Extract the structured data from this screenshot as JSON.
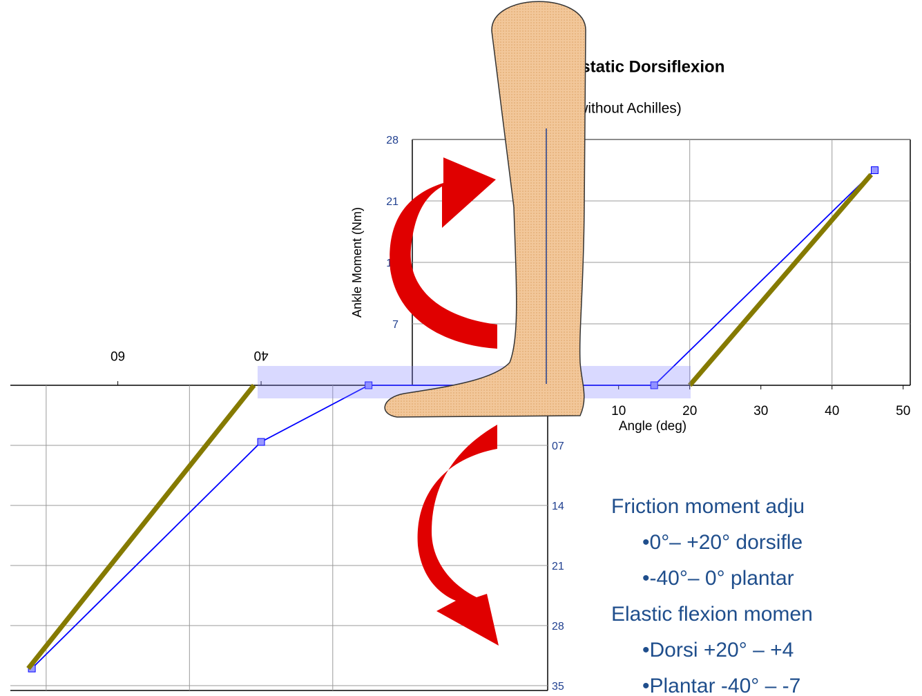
{
  "chart_data": [
    {
      "type": "line",
      "title": "Quasi-static Dorsiflexion",
      "subtitle": "(without Achilles)",
      "y_label": "Ankle Moment (Nm)",
      "x_label": "Angle (deg)",
      "xlim": [
        -19,
        51
      ],
      "ylim": [
        0,
        28
      ],
      "xticks": [
        10,
        20,
        30,
        40,
        50
      ],
      "yticks": [
        7,
        14,
        21,
        28
      ],
      "x_gridlines": [
        20,
        40
      ],
      "grid": true,
      "series": [
        {
          "color": "#0000ff",
          "x": [
            0,
            15,
            46
          ],
          "values": [
            0,
            0,
            24.5
          ],
          "markers": true
        },
        {
          "color": "#857a00",
          "x": [
            20,
            45.5
          ],
          "values": [
            0,
            24
          ],
          "markers": false
        }
      ]
    },
    {
      "type": "line",
      "x_reversed": true,
      "y_reversed": true,
      "upside_down_labels": true,
      "xlim": [
        0,
        75
      ],
      "ylim": [
        0,
        35
      ],
      "xticks": [
        0,
        40,
        60
      ],
      "yticks": [
        {
          "value": 7,
          "label": "07"
        },
        14,
        21,
        28,
        35
      ],
      "x_gridlines": [
        30,
        50,
        70
      ],
      "grid": true,
      "series": [
        {
          "color": "#0000ff",
          "x": [
            0,
            25,
            40,
            72
          ],
          "values": [
            0,
            0,
            6.6,
            33
          ],
          "markers": true
        },
        {
          "color": "#857a00",
          "x": [
            41,
            72.5
          ],
          "values": [
            0,
            33
          ],
          "markers": false
        }
      ]
    }
  ],
  "notes": [
    "Friction moment adju",
    "•0°– +20° dorsifle",
    "•-40°– 0° plantar",
    "Elastic flexion momen",
    "•Dorsi +20° – +4",
    "•Plantar -40° – -7"
  ]
}
